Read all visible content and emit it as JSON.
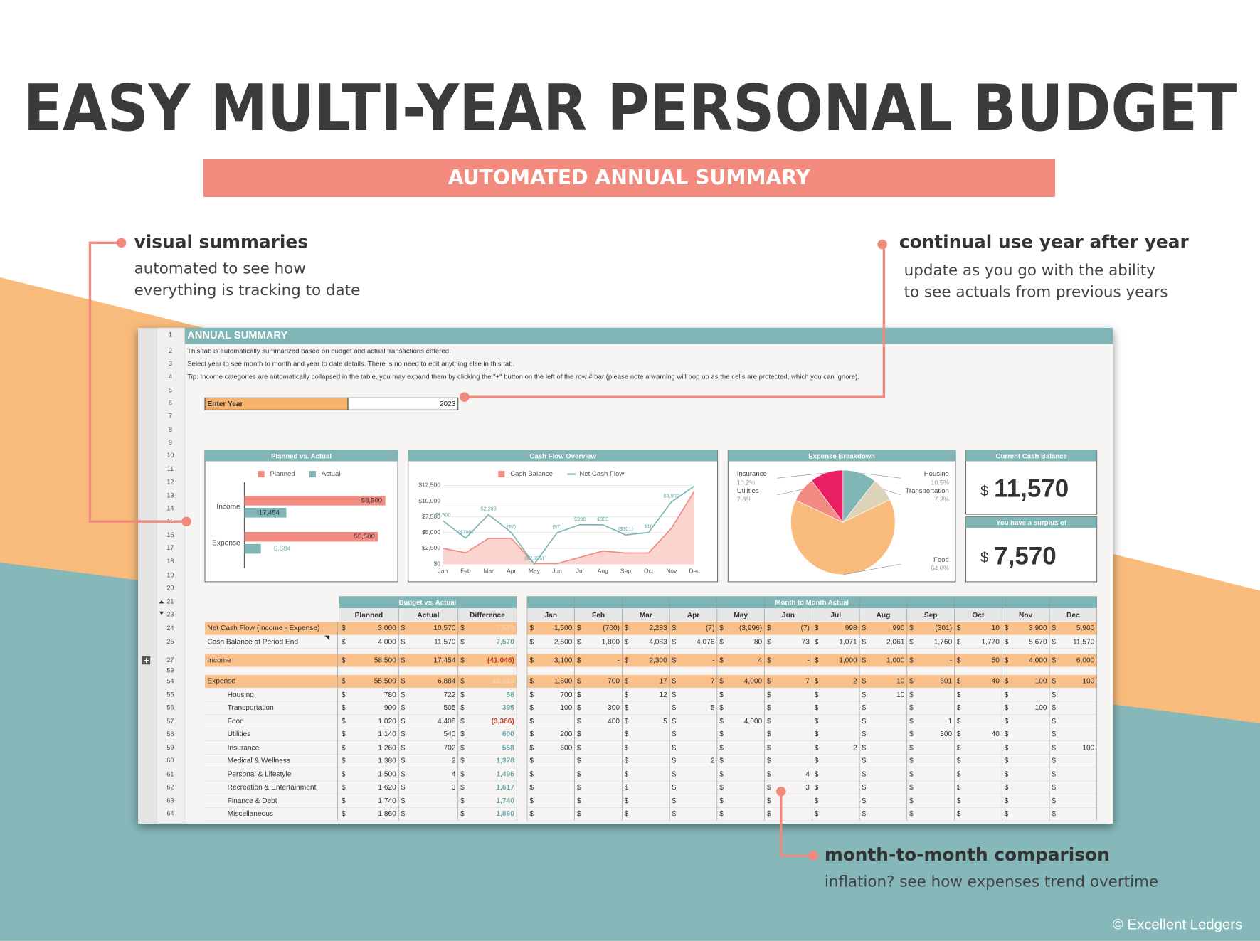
{
  "header": {
    "title": "EASY MULTI-YEAR PERSONAL BUDGET",
    "subtitle": "AUTOMATED ANNUAL SUMMARY"
  },
  "callouts": [
    {
      "title": "visual summaries",
      "lines": [
        "automated to see how",
        "everything is tracking to date"
      ]
    },
    {
      "title": "continual use year after year",
      "lines": [
        "update as you go with the ability",
        "to see actuals from previous years"
      ]
    },
    {
      "title": "month-to-month comparison",
      "lines": [
        "inflation? see how expenses trend overtime"
      ]
    }
  ],
  "copyright": "© Excellent Ledgers",
  "sheet": {
    "title": "ANNUAL SUMMARY",
    "notes": [
      "This tab is automatically summarized based on budget and actual transactions entered.",
      "Select year to see month to month and year to date details. There is no need to edit anything else in this tab.",
      "Tip: Income categories are automatically collapsed in the table, you may expand them by clicking the \"+\" button on the left of the row # bar (please note a warning will pop up as the cells are protected, which you can ignore)."
    ],
    "row_numbers": [
      1,
      2,
      3,
      4,
      5,
      6,
      7,
      8,
      9,
      10,
      11,
      12,
      13,
      14,
      15,
      16,
      17,
      18,
      19,
      20,
      21,
      23,
      24,
      25,
      27,
      53,
      54,
      55,
      56,
      57,
      58,
      59,
      60,
      61,
      62,
      63,
      64
    ],
    "enter_year": {
      "label": "Enter Year",
      "value": "2023"
    },
    "cash_card": {
      "title": "Current Cash Balance",
      "value": "11,570"
    },
    "surplus_card": {
      "title": "You have a surplus of",
      "value": "7,570"
    },
    "currency": "$",
    "budget_table": {
      "title": "Budget vs. Actual",
      "columns": [
        "Planned",
        "Actual",
        "Difference"
      ]
    },
    "month_table": {
      "title": "Month to Month Actual",
      "columns": [
        "Jan",
        "Feb",
        "Mar",
        "Apr",
        "May",
        "Jun",
        "Jul",
        "Aug",
        "Sep",
        "Oct",
        "Nov",
        "Dec"
      ]
    },
    "rows": [
      {
        "label": "Net Cash Flow (Income - Expense)",
        "level": 0,
        "highlight": true,
        "budget": [
          "3,000",
          "10,570",
          "7,570"
        ],
        "months": [
          "1,500",
          "(700)",
          "2,283",
          "(7)",
          "(3,996)",
          "(7)",
          "998",
          "990",
          "(301)",
          "10",
          "3,900",
          "5,900"
        ]
      },
      {
        "label": "Cash Balance at Period End",
        "level": 0,
        "highlight": false,
        "budget": [
          "4,000",
          "11,570",
          "7,570"
        ],
        "months": [
          "2,500",
          "1,800",
          "4,083",
          "4,076",
          "80",
          "73",
          "1,071",
          "2,061",
          "1,760",
          "1,770",
          "5,670",
          "11,570"
        ]
      },
      {
        "label": "Income",
        "level": 0,
        "highlight": true,
        "budget": [
          "58,500",
          "17,454",
          "(41,046)"
        ],
        "months": [
          "3,100",
          "-",
          "2,300",
          "-",
          "4",
          "-",
          "1,000",
          "1,000",
          "-",
          "50",
          "4,000",
          "6,000"
        ]
      },
      {
        "label": "Expense",
        "level": 0,
        "highlight": true,
        "budget": [
          "55,500",
          "6,884",
          "48,616"
        ],
        "months": [
          "1,600",
          "700",
          "17",
          "7",
          "4,000",
          "7",
          "2",
          "10",
          "301",
          "40",
          "100",
          "100"
        ]
      },
      {
        "label": "Housing",
        "level": 1,
        "highlight": false,
        "budget": [
          "780",
          "722",
          "58"
        ],
        "months": [
          "700",
          null,
          "12",
          null,
          null,
          null,
          null,
          "10",
          null,
          null,
          null,
          null
        ]
      },
      {
        "label": "Transportation",
        "level": 1,
        "highlight": false,
        "budget": [
          "900",
          "505",
          "395"
        ],
        "months": [
          "100",
          "300",
          null,
          "5",
          null,
          null,
          null,
          null,
          null,
          null,
          "100",
          null
        ]
      },
      {
        "label": "Food",
        "level": 1,
        "highlight": false,
        "budget": [
          "1,020",
          "4,406",
          "(3,386)"
        ],
        "months": [
          null,
          "400",
          "5",
          null,
          "4,000",
          null,
          null,
          null,
          "1",
          null,
          null,
          null
        ]
      },
      {
        "label": "Utilities",
        "level": 1,
        "highlight": false,
        "budget": [
          "1,140",
          "540",
          "600"
        ],
        "months": [
          "200",
          null,
          null,
          null,
          null,
          null,
          null,
          null,
          "300",
          "40",
          null,
          null
        ]
      },
      {
        "label": "Insurance",
        "level": 1,
        "highlight": false,
        "budget": [
          "1,260",
          "702",
          "558"
        ],
        "months": [
          "600",
          null,
          null,
          null,
          null,
          null,
          "2",
          null,
          null,
          null,
          null,
          "100"
        ]
      },
      {
        "label": "Medical & Wellness",
        "level": 1,
        "highlight": false,
        "budget": [
          "1,380",
          "2",
          "1,378"
        ],
        "months": [
          null,
          null,
          null,
          "2",
          null,
          null,
          null,
          null,
          null,
          null,
          null,
          null
        ]
      },
      {
        "label": "Personal & Lifestyle",
        "level": 1,
        "highlight": false,
        "budget": [
          "1,500",
          "4",
          "1,496"
        ],
        "months": [
          null,
          null,
          null,
          null,
          null,
          "4",
          null,
          null,
          null,
          null,
          null,
          null
        ]
      },
      {
        "label": "Recreation & Entertainment",
        "level": 1,
        "highlight": false,
        "budget": [
          "1,620",
          "3",
          "1,617"
        ],
        "months": [
          null,
          null,
          null,
          null,
          null,
          "3",
          null,
          null,
          null,
          null,
          null,
          null
        ]
      },
      {
        "label": "Finance & Debt",
        "level": 1,
        "highlight": false,
        "budget": [
          "1,740",
          null,
          "1,740"
        ],
        "months": [
          null,
          null,
          null,
          null,
          null,
          null,
          null,
          null,
          null,
          null,
          null,
          null
        ]
      },
      {
        "label": "Miscellaneous",
        "level": 1,
        "highlight": false,
        "budget": [
          "1,860",
          null,
          "1,860"
        ],
        "months": [
          null,
          null,
          null,
          null,
          null,
          null,
          null,
          null,
          null,
          null,
          null,
          null
        ]
      }
    ]
  },
  "chart_data": [
    {
      "type": "hbar",
      "title": "Planned vs. Actual",
      "categories": [
        "Income",
        "Expense"
      ],
      "series": [
        {
          "name": "Planned",
          "color": "#f28b82",
          "values": [
            58500,
            55500
          ],
          "value_labels": [
            "58,500",
            "55,500"
          ]
        },
        {
          "name": "Actual",
          "color": "#7fb5b5",
          "values": [
            17454,
            6884
          ],
          "value_labels": [
            "17,454",
            "6,884"
          ]
        }
      ],
      "xlim": [
        0,
        60000
      ]
    },
    {
      "type": "line",
      "title": "Cash Flow Overview",
      "categories": [
        "Jan",
        "Feb",
        "Mar",
        "Apr",
        "May",
        "Jun",
        "Jul",
        "Aug",
        "Sep",
        "Oct",
        "Nov",
        "Dec"
      ],
      "series": [
        {
          "name": "Cash Balance",
          "color": "#f28b82",
          "fill": "#fbd3cf",
          "values": [
            2500,
            1800,
            4083,
            4076,
            80,
            73,
            1071,
            2061,
            1760,
            1770,
            5670,
            11570
          ]
        },
        {
          "name": "Net Cash Flow",
          "color": "#7fb5b5",
          "axis": "y2",
          "values": [
            1500,
            -700,
            2283,
            -7,
            -3996,
            -7,
            998,
            990,
            -301,
            10,
            3900,
            5900
          ],
          "value_labels": [
            "$1,500",
            "($700)",
            "$2,283",
            "($7)",
            "($3,996)",
            "($7)",
            "$998",
            "$990",
            "($301)",
            "$10",
            "$3,900",
            null
          ]
        }
      ],
      "ylim": [
        0,
        12500
      ],
      "yticks": [
        {
          "value": 0,
          "label": "$0"
        },
        {
          "value": 2500,
          "label": "$2,500"
        },
        {
          "value": 5000,
          "label": "$5,000"
        },
        {
          "value": 7500,
          "label": "$7,500"
        },
        {
          "value": 10000,
          "label": "$10,000"
        },
        {
          "value": 12500,
          "label": "$12,500"
        }
      ],
      "y2lim": [
        -4000,
        6000
      ],
      "grid": true
    },
    {
      "type": "pie",
      "title": "Expense Breakdown",
      "categories": [
        "Housing",
        "Transportation",
        "Food",
        "Utilities",
        "Insurance"
      ],
      "values": [
        10.5,
        7.3,
        64.0,
        7.8,
        10.2
      ],
      "value_labels": [
        "10.5%",
        "7.3%",
        "64.0%",
        "7.8%",
        "10.2%"
      ],
      "colors": [
        "#7fb5b5",
        "#ddd3b8",
        "#f8bb7c",
        "#f28b82",
        "#e91e63"
      ]
    }
  ]
}
